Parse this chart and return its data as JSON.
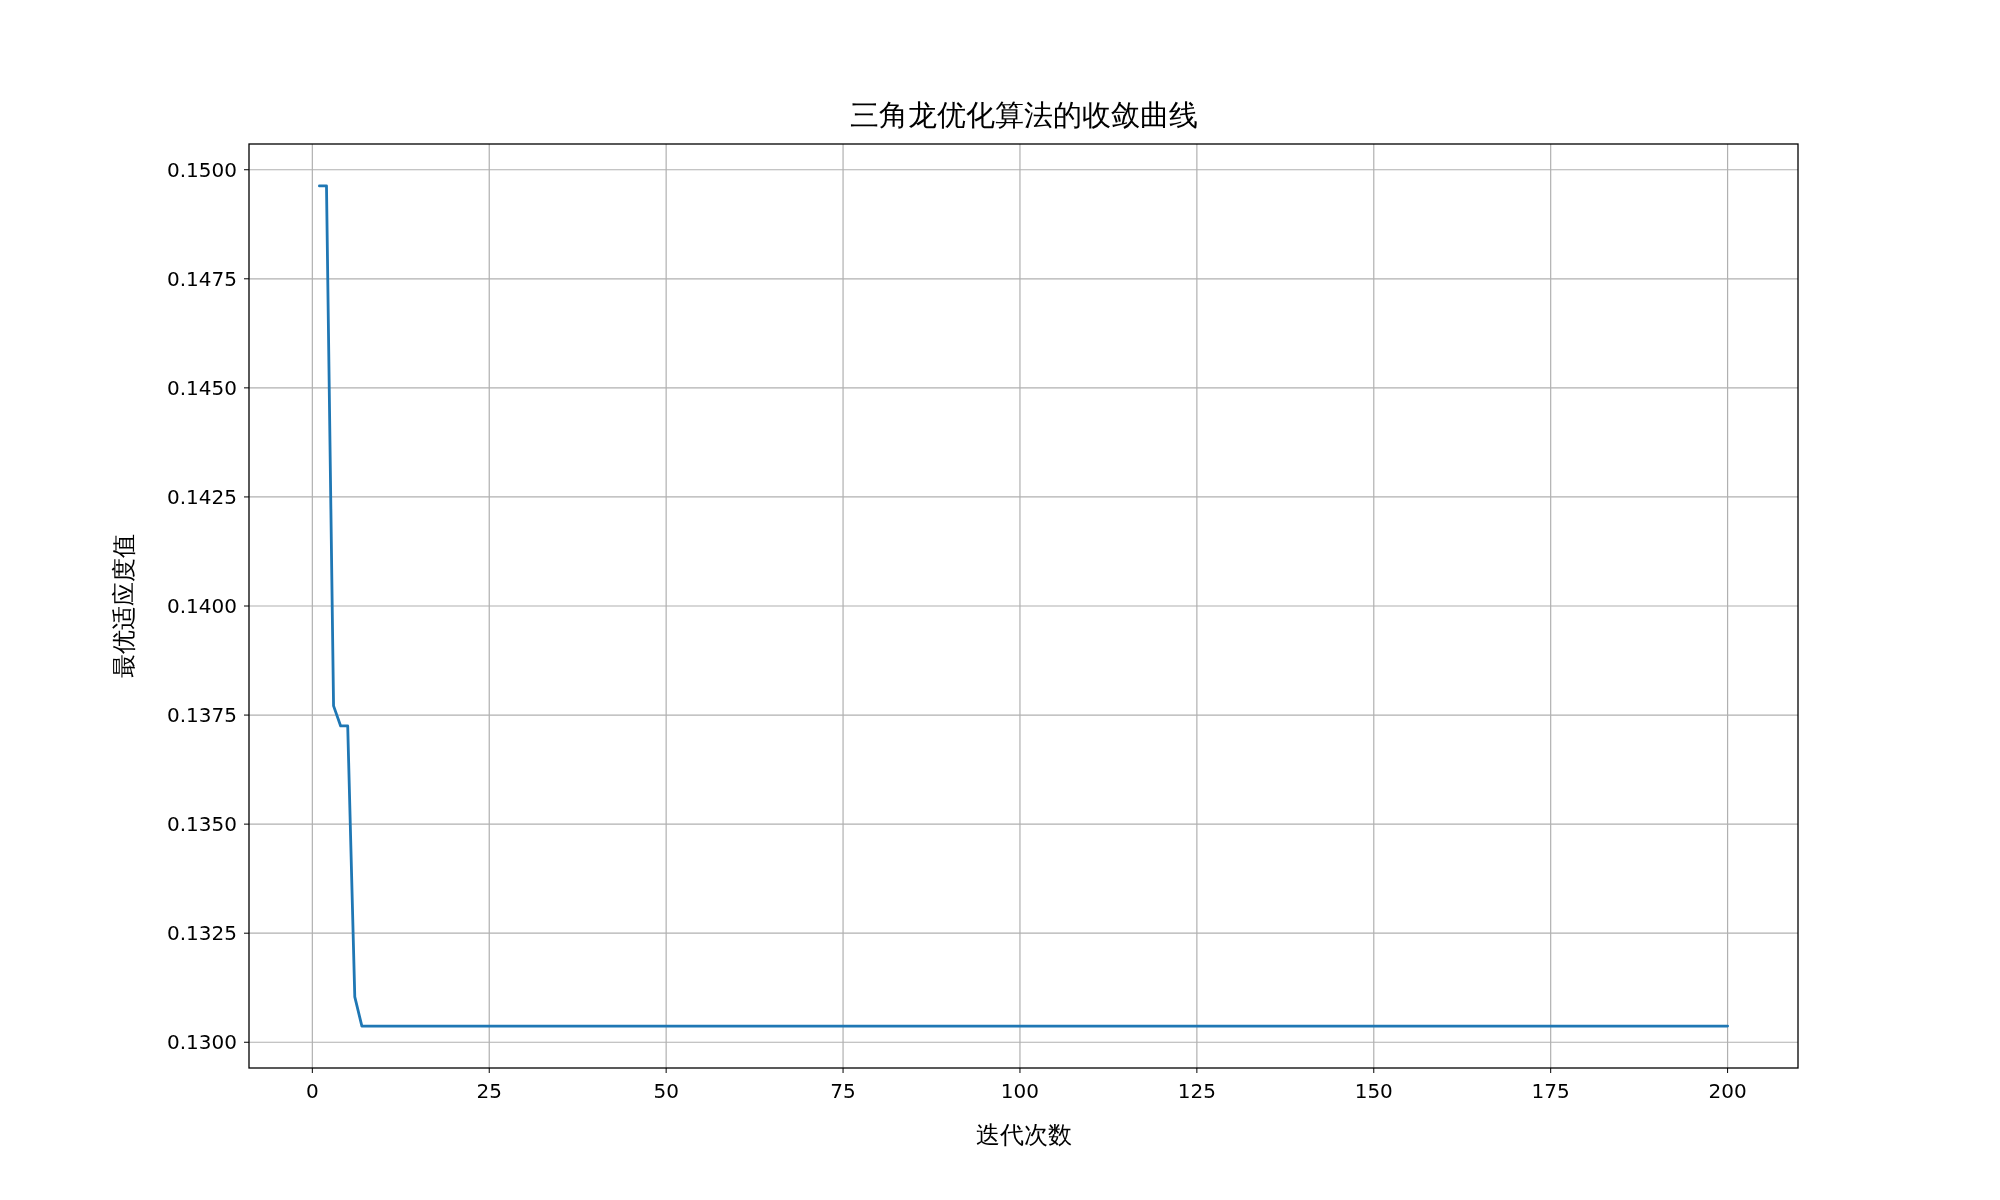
{
  "chart_data": {
    "type": "line",
    "title": "三角龙优化算法的收敛曲线",
    "xlabel": "迭代次数",
    "ylabel": "最优适应度值",
    "series": [
      {
        "color": "#1f77b4",
        "x": [
          1,
          2,
          3,
          4,
          5,
          6,
          7,
          200
        ],
        "values": [
          0.14963,
          0.14963,
          0.13771,
          0.13725,
          0.13725,
          0.13104,
          0.13037,
          0.13037
        ]
      }
    ],
    "xlim": [
      -8.95,
      209.95
    ],
    "ylim": [
      0.12941,
      0.15059
    ],
    "xticks": [
      0,
      25,
      50,
      75,
      100,
      125,
      150,
      175,
      200
    ],
    "yticks": [
      {
        "value": 0.13,
        "label": "0.1300"
      },
      {
        "value": 0.1325,
        "label": "0.1325"
      },
      {
        "value": 0.135,
        "label": "0.1350"
      },
      {
        "value": 0.1375,
        "label": "0.1375"
      },
      {
        "value": 0.14,
        "label": "0.1400"
      },
      {
        "value": 0.1425,
        "label": "0.1425"
      },
      {
        "value": 0.145,
        "label": "0.1450"
      },
      {
        "value": 0.1475,
        "label": "0.1475"
      },
      {
        "value": 0.15,
        "label": "0.1500"
      }
    ],
    "grid": true
  }
}
